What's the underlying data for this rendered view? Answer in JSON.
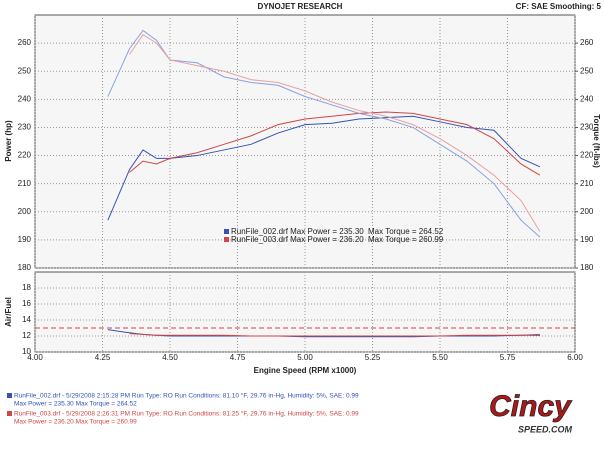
{
  "header": {
    "title": "DYNOJET RESEARCH",
    "settings": "CF: SAE  Smoothing: 5"
  },
  "chart_data": [
    {
      "type": "line",
      "y_label": "Power (hp)",
      "y2_label": "Torque (ft-lbs)",
      "xlim": [
        4,
        6
      ],
      "ylim": [
        180,
        270
      ],
      "y2lim": [
        180,
        270
      ],
      "yticks": [
        180,
        190,
        200,
        210,
        220,
        230,
        240,
        250,
        260
      ],
      "y2ticks": [
        180,
        190,
        200,
        210,
        220,
        230,
        240,
        250,
        260
      ],
      "grid": true,
      "x": [
        4.27,
        4.35,
        4.4,
        4.45,
        4.5,
        4.6,
        4.7,
        4.8,
        4.9,
        5.0,
        5.1,
        5.2,
        5.3,
        5.4,
        5.5,
        5.6,
        5.7,
        5.8,
        5.87
      ],
      "series": [
        {
          "color": "#3552b5",
          "values": [
            197,
            215,
            222,
            219,
            219,
            220,
            222,
            224,
            228,
            231,
            231.5,
            233,
            233.5,
            234,
            232,
            230,
            229,
            219,
            216
          ]
        },
        {
          "color": "#d04545",
          "values": [
            null,
            214,
            218,
            217,
            219,
            221,
            224,
            227,
            231,
            233,
            234,
            235,
            235.5,
            235,
            233,
            231,
            226,
            217,
            213
          ]
        },
        {
          "color": "#8aa0e0",
          "axis": "y2",
          "values": [
            241,
            258,
            264.5,
            261,
            254,
            253,
            248,
            246,
            245,
            241,
            238,
            235,
            233,
            230,
            224,
            218,
            210,
            197,
            191
          ]
        },
        {
          "color": "#e8a0a0",
          "axis": "y2",
          "values": [
            null,
            256,
            263,
            260,
            254,
            252,
            250,
            247,
            246,
            243,
            239,
            236,
            234,
            231,
            226,
            220,
            213,
            204,
            193
          ]
        }
      ],
      "legend": [
        {
          "color": "#3552b5",
          "text": "RunFile_002.drf Max Power = 235.30",
          "torque": "Max Torque = 264.52"
        },
        {
          "color": "#d04545",
          "text": "RunFile_003.drf Max Power = 236.20",
          "torque": "Max Torque = 260.99"
        }
      ]
    },
    {
      "type": "line",
      "y_label": "Air/Fuel",
      "x_label": "Engine Speed (RPM x1000)",
      "xlim": [
        4,
        6
      ],
      "ylim": [
        10,
        20
      ],
      "xticks": [
        {
          "value": 4,
          "label": "4.00"
        },
        {
          "value": 4.25,
          "label": "4.25"
        },
        {
          "value": 4.5,
          "label": "4.50"
        },
        {
          "value": 4.75,
          "label": "4.75"
        },
        {
          "value": 5,
          "label": "5.00"
        },
        {
          "value": 5.25,
          "label": "5.25"
        },
        {
          "value": 5.5,
          "label": "5.50"
        },
        {
          "value": 5.75,
          "label": "5.75"
        },
        {
          "value": 6,
          "label": "6.00"
        }
      ],
      "yticks": [
        10,
        12,
        14,
        16,
        18
      ],
      "grid": true,
      "reference_line": {
        "value": 13,
        "color": "#d04545"
      },
      "x": [
        4.27,
        4.35,
        4.4,
        4.45,
        4.5,
        4.6,
        4.7,
        4.8,
        4.9,
        5.0,
        5.1,
        5.2,
        5.3,
        5.4,
        5.5,
        5.6,
        5.7,
        5.8,
        5.87
      ],
      "series": [
        {
          "color": "#3552b5",
          "values": [
            12.8,
            12.4,
            12.2,
            12.1,
            12.0,
            12.0,
            12.0,
            12.0,
            12.0,
            11.9,
            11.9,
            11.9,
            11.9,
            11.9,
            12.0,
            12.0,
            12.0,
            12.1,
            12.1
          ]
        },
        {
          "color": "#d04545",
          "values": [
            null,
            12.3,
            12.2,
            12.1,
            12.1,
            12.1,
            12.1,
            12.0,
            12.0,
            12.0,
            12.0,
            12.0,
            12.0,
            12.0,
            12.0,
            12.1,
            12.1,
            12.1,
            12.2
          ]
        }
      ]
    }
  ],
  "footer": {
    "runs": [
      {
        "color": "#3552b5",
        "line1": "RunFile_002.drf - 5/29/2008 2:15:28 PM  Run Type: RO  Run Conditions: 81.10 °F, 29.76 in-Hg,  Humidity:  5%, SAE: 0.99",
        "line2": "Max Power = 235.30  Max Torque = 264.52"
      },
      {
        "color": "#d04545",
        "line1": "RunFile_003.drf - 5/29/2008 2:26:31 PM  Run Type: RO  Run Conditions: 81.25 °F, 29.76 in-Hg,  Humidity:  5%, SAE: 0.99",
        "line2": "Max Power = 236.20  Max Torque = 260.99"
      }
    ],
    "logo": {
      "text": "Cincy",
      "sub": "SPEED.COM"
    }
  }
}
